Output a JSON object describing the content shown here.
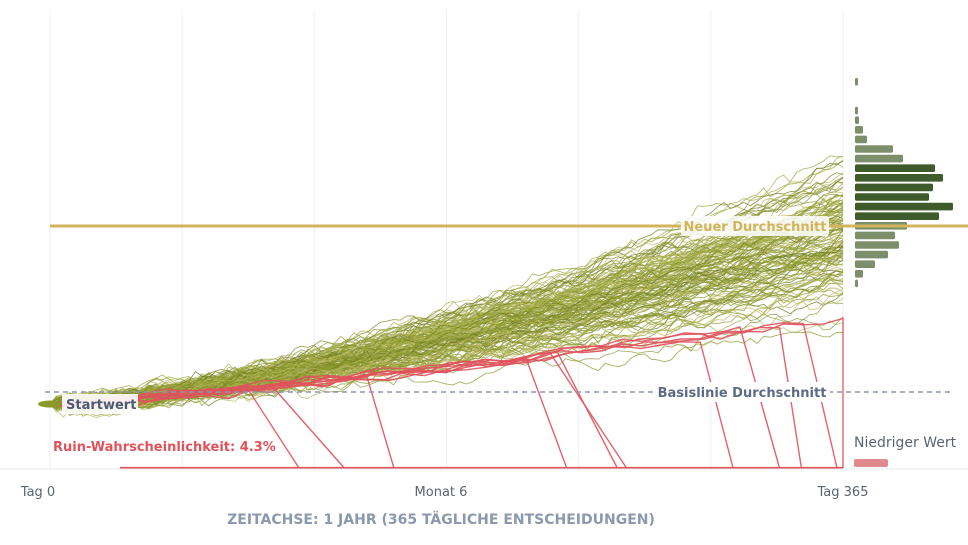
{
  "chart_data": {
    "type": "line",
    "x_ticks": [
      "Tag 0",
      "Monat 6",
      "Tag 365"
    ],
    "x_caption": "ZEITACHSE: 1 JAHR (365 TÄGLICHE ENTSCHEIDUNGEN)",
    "x_range": [
      0,
      365
    ],
    "start_label": "Startwert",
    "baseline_label": "Basislinie Durchschnitt",
    "new_mean_label": "Neuer Durchschnitt",
    "ruin_label": "Ruin-Wahrscheinlichkeit: 4.3%",
    "ruin_probability": 0.043,
    "legend_low": "Niedriger Wert",
    "grid": true,
    "histogram": "right",
    "colors": {
      "path": "#8a9a2a",
      "ruin": "#e0525c",
      "mean_line": "#d2b45c",
      "baseline": "#8b98ad",
      "hist_dark": "#3f5a2b",
      "hist_light": "#7d8f6a",
      "legend_low": "#e08a8e"
    }
  }
}
